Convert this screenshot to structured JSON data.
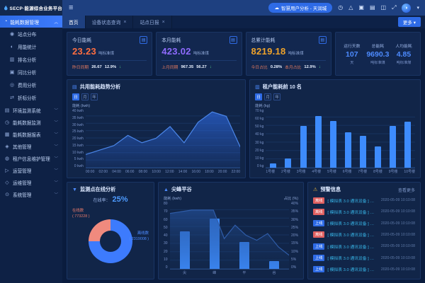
{
  "brand": {
    "logo_text": "SECP·能源综合业务平台"
  },
  "topbar": {
    "project_pill": "智慧用户分析 - 天润城",
    "icons": [
      {
        "name": "clock-icon",
        "glyph": "◷"
      },
      {
        "name": "alert-triangle-icon",
        "glyph": "△"
      },
      {
        "name": "package-icon",
        "glyph": "▣"
      },
      {
        "name": "calendar-icon",
        "glyph": "▤"
      },
      {
        "name": "copy-icon",
        "glyph": "◫"
      },
      {
        "name": "fullscreen-icon",
        "glyph": "⤢"
      }
    ]
  },
  "tabs": {
    "items": [
      {
        "label": "首页",
        "closable": false,
        "active": true
      },
      {
        "label": "设备状态查询",
        "closable": true,
        "active": false
      },
      {
        "label": "站点日报",
        "closable": true,
        "active": false
      }
    ],
    "more_label": "更多"
  },
  "sidebar": {
    "active_group": {
      "label": "能耗数据管理",
      "icon": "◔"
    },
    "sub_items": [
      {
        "label": "站点分布",
        "icon": "◉"
      },
      {
        "label": "用能统计",
        "icon": "◐"
      },
      {
        "label": "排名分析",
        "icon": "▥"
      },
      {
        "label": "同比分析",
        "icon": "▣"
      },
      {
        "label": "费用分析",
        "icon": "◎"
      },
      {
        "label": "折标分析",
        "icon": "⇄"
      }
    ],
    "groups": [
      {
        "label": "环境监测系统",
        "icon": "▤"
      },
      {
        "label": "能耗数据监测",
        "icon": "◷"
      },
      {
        "label": "能耗数据报表",
        "icon": "▦"
      },
      {
        "label": "其他管理",
        "icon": "◈"
      },
      {
        "label": "租户信息维护管理",
        "icon": "◍"
      },
      {
        "label": "运营管理",
        "icon": "▷"
      },
      {
        "label": "运维管理",
        "icon": "◇"
      },
      {
        "label": "系统管理",
        "icon": "⊙"
      }
    ]
  },
  "kpi_cards": [
    {
      "title": "今日能耗",
      "value": "23.23",
      "unit": "吨标准煤",
      "value_color": "#ff6e40",
      "footer": [
        {
          "label": "昨日同期"
        },
        {
          "value": "26.67"
        },
        {
          "value": "12.9%",
          "arrow": "↓"
        }
      ]
    },
    {
      "title": "本月能耗",
      "value": "423.02",
      "unit": "吨标准煤",
      "value_color": "#8f6bff",
      "footer": [
        {
          "label": "上月同期"
        },
        {
          "value": "967.35"
        },
        {
          "value": "56.27",
          "arrow": "↓"
        }
      ]
    },
    {
      "title": "总累计能耗",
      "value": "8219.18",
      "unit": "吨标准煤",
      "value_color": "#f0a32a",
      "footer": [
        {
          "label": "今日占比"
        },
        {
          "value": "0.28%"
        },
        {
          "label": "本月占比"
        },
        {
          "value": "12.9%",
          "arrow": "↓"
        }
      ]
    }
  ],
  "stats_card": {
    "items": [
      {
        "label": "运行天数",
        "value": "107",
        "unit": "天"
      },
      {
        "label": "总能耗",
        "value": "9690.3",
        "unit": "吨标准煤"
      },
      {
        "label": "人均能耗",
        "value": "4.85",
        "unit": "吨标准煤"
      }
    ]
  },
  "chart_data": [
    {
      "id": "energy-trend",
      "type": "area",
      "title": "共用能耗趋势分析",
      "tabs": [
        "日",
        "月",
        "年"
      ],
      "active_tab": "日",
      "legend": "能耗 (kwh)",
      "x": [
        "00:00",
        "02:00",
        "04:00",
        "06:00",
        "08:00",
        "10:00",
        "12:00",
        "14:00",
        "16:00",
        "18:00",
        "20:00",
        "22:00"
      ],
      "values": [
        9,
        12,
        15,
        22,
        17,
        20,
        28,
        17,
        31,
        38,
        35,
        14
      ],
      "ylim": [
        0,
        40
      ],
      "ytick_step": 5,
      "yunit": " kwh",
      "grid": true,
      "legend_position": "top-left"
    },
    {
      "id": "tenant-rank",
      "type": "bar",
      "title": "租户能耗前 10 名",
      "tabs": [
        "日",
        "月",
        "年"
      ],
      "active_tab": "日",
      "legend": "能耗 (kg)",
      "categories": [
        "1号楼",
        "2号楼",
        "3号楼",
        "4号楼",
        "5号楼",
        "6号楼",
        "7号楼",
        "8号楼",
        "9号楼",
        "10号楼"
      ],
      "values": [
        5,
        11,
        50,
        62,
        56,
        42,
        38,
        25,
        50,
        55
      ],
      "ylim": [
        0,
        70
      ],
      "ytick_step": 10,
      "yunit": " kg",
      "grid": true
    },
    {
      "id": "online-donut",
      "type": "pie",
      "title": "监测点在线分析",
      "center_label": "在线率：",
      "center_value": "25%",
      "slices": [
        {
          "name": "在线数",
          "value": 773228,
          "value_display": "( 773228 )",
          "pct": 25,
          "color": "#f08a7e"
        },
        {
          "name": "离线数",
          "value": 2319008,
          "value_display": "( 2319008 )",
          "pct": 75,
          "color": "#3d7bfd"
        }
      ]
    },
    {
      "id": "peak-valley",
      "type": "combo",
      "title": "尖峰平谷",
      "left_legend": "能耗 (kwh)",
      "right_legend": "占比 (%)",
      "categories": [
        "尖",
        "峰",
        "平",
        "谷"
      ],
      "bar_values": [
        45,
        60,
        32,
        9
      ],
      "bar_ylim": [
        0,
        80
      ],
      "bar_ytick_step": 10,
      "bar_yunit": "",
      "area_values": [
        33,
        34,
        35,
        35,
        35,
        18,
        26,
        20,
        17,
        21,
        13,
        8
      ],
      "area_ylim": [
        0,
        40
      ],
      "area_ytick_step": 5,
      "area_yunit": "%"
    }
  ],
  "warnings": {
    "title": "预警信息",
    "more_label": "查看更多",
    "rows": [
      {
        "tag": "离线",
        "tag_type": "red",
        "text": "[ 模拟表 3.0 通讯设备 ] 模拟表 3.0...",
        "time": "2020-05-09 10:10:08"
      },
      {
        "tag": "离线",
        "tag_type": "red",
        "text": "[ 模拟表 3.0 通讯设备 ] 模拟表 3.0...",
        "time": "2020-05-09 10:10:08"
      },
      {
        "tag": "上线",
        "tag_type": "blue",
        "text": "[ 模拟表 3.0 通讯设备 ] 模拟表 3.0...",
        "time": "2020-05-09 10:10:08"
      },
      {
        "tag": "离线",
        "tag_type": "red",
        "text": "[ 模拟表 3.0 通讯设备 ] 模拟表 3.0...",
        "time": "2020-05-09 10:10:08"
      },
      {
        "tag": "上线",
        "tag_type": "blue",
        "text": "[ 模拟表 3.0 通讯设备 ] 模拟表 3.0...",
        "time": "2020-05-09 10:10:08"
      },
      {
        "tag": "上线",
        "tag_type": "blue",
        "text": "[ 模拟表 3.0 通讯设备 ] 模拟表 3.0...",
        "time": "2020-05-09 10:10:08"
      },
      {
        "tag": "上线",
        "tag_type": "blue",
        "text": "[ 模拟表 3.0 通讯设备 ] 模拟表 3.0...",
        "time": "2020-05-09 10:10:08"
      }
    ]
  }
}
